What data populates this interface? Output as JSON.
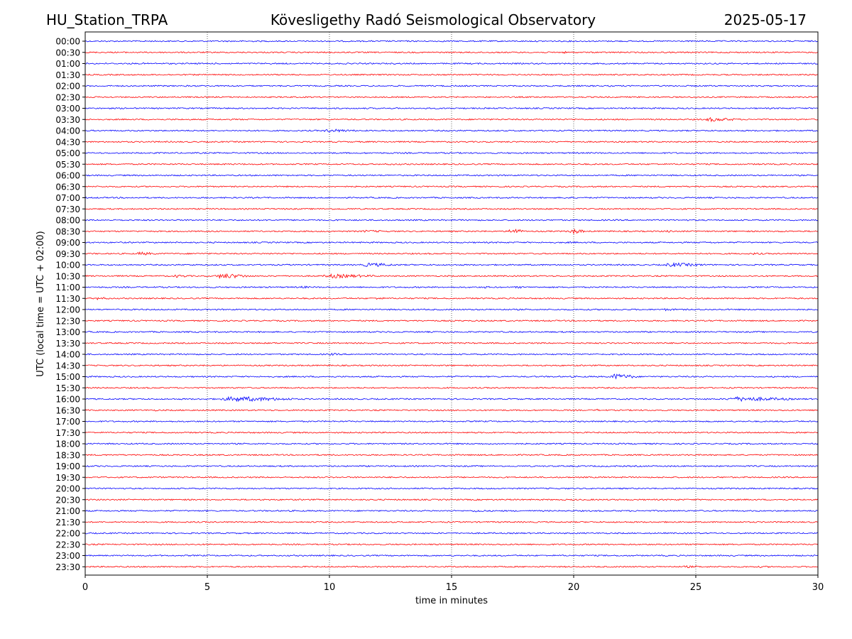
{
  "header": {
    "station": "HU_Station_TRPA",
    "observatory": "Kövesligethy Radó Seismological Observatory",
    "date": "2025-05-17"
  },
  "chart_data": {
    "type": "line",
    "title": "Kövesligethy Radó Seismological Observatory",
    "xlabel": "time in minutes",
    "ylabel": "UTC (local time = UTC + 02:00)",
    "xlim": [
      0,
      30
    ],
    "x_ticks": [
      "0",
      "5",
      "10",
      "15",
      "20",
      "25",
      "30"
    ],
    "grid": "vertical dotted lines at 5-minute intervals",
    "trace_colors": [
      "#0000ff",
      "#ff0000"
    ],
    "rows": [
      "00:00",
      "00:30",
      "01:00",
      "01:30",
      "02:00",
      "02:30",
      "03:00",
      "03:30",
      "04:00",
      "04:30",
      "05:00",
      "05:30",
      "06:00",
      "06:30",
      "07:00",
      "07:30",
      "08:00",
      "08:30",
      "09:00",
      "09:30",
      "10:00",
      "10:30",
      "11:00",
      "11:30",
      "12:00",
      "12:30",
      "13:00",
      "13:30",
      "14:00",
      "14:30",
      "15:00",
      "15:30",
      "16:00",
      "16:30",
      "17:00",
      "17:30",
      "18:00",
      "18:30",
      "19:00",
      "19:30",
      "20:00",
      "20:30",
      "21:00",
      "21:30",
      "22:00",
      "22:30",
      "23:00",
      "23:30"
    ],
    "events": [
      {
        "row": "00:30",
        "start": 15.5,
        "end": 16.5,
        "amp": 1.2
      },
      {
        "row": "00:30",
        "start": 19.4,
        "end": 19.8,
        "amp": 2.5
      },
      {
        "row": "03:30",
        "start": 25.2,
        "end": 26.8,
        "amp": 3.5
      },
      {
        "row": "04:00",
        "start": 9.6,
        "end": 11.2,
        "amp": 3.0
      },
      {
        "row": "05:30",
        "start": 12.0,
        "end": 13.8,
        "amp": 1.5
      },
      {
        "row": "07:00",
        "start": 19.5,
        "end": 20.2,
        "amp": 2.0
      },
      {
        "row": "08:00",
        "start": 10.0,
        "end": 11.2,
        "amp": 1.2
      },
      {
        "row": "08:30",
        "start": 11.0,
        "end": 13.0,
        "amp": 2.0
      },
      {
        "row": "08:30",
        "start": 17.3,
        "end": 17.9,
        "amp": 6.0
      },
      {
        "row": "08:30",
        "start": 19.8,
        "end": 20.4,
        "amp": 5.0
      },
      {
        "row": "08:30",
        "start": 23.8,
        "end": 24.0,
        "amp": 4.0
      },
      {
        "row": "08:30",
        "start": 28.0,
        "end": 29.5,
        "amp": 1.5
      },
      {
        "row": "09:00",
        "start": 19.5,
        "end": 20.8,
        "amp": 1.5
      },
      {
        "row": "09:00",
        "start": 25.3,
        "end": 26.5,
        "amp": 1.5
      },
      {
        "row": "09:30",
        "start": 2.0,
        "end": 3.0,
        "amp": 3.0
      },
      {
        "row": "09:30",
        "start": 27.2,
        "end": 28.0,
        "amp": 2.0
      },
      {
        "row": "10:00",
        "start": 11.2,
        "end": 12.8,
        "amp": 3.5
      },
      {
        "row": "10:00",
        "start": 23.5,
        "end": 25.5,
        "amp": 3.5
      },
      {
        "row": "10:30",
        "start": 3.5,
        "end": 4.5,
        "amp": 2.5
      },
      {
        "row": "10:30",
        "start": 5.2,
        "end": 6.8,
        "amp": 4.5
      },
      {
        "row": "10:30",
        "start": 9.5,
        "end": 12.0,
        "amp": 3.5
      },
      {
        "row": "11:00",
        "start": 8.8,
        "end": 9.2,
        "amp": 2.5
      },
      {
        "row": "11:00",
        "start": 16.2,
        "end": 16.8,
        "amp": 2.0
      },
      {
        "row": "11:00",
        "start": 17.5,
        "end": 18.2,
        "amp": 2.0
      },
      {
        "row": "11:30",
        "start": 0.2,
        "end": 1.2,
        "amp": 2.5
      },
      {
        "row": "11:30",
        "start": 11.9,
        "end": 12.2,
        "amp": 4.0
      },
      {
        "row": "12:00",
        "start": 23.5,
        "end": 24.5,
        "amp": 2.0
      },
      {
        "row": "13:00",
        "start": 12.2,
        "end": 13.5,
        "amp": 1.5
      },
      {
        "row": "14:00",
        "start": 9.8,
        "end": 10.8,
        "amp": 2.0
      },
      {
        "row": "15:00",
        "start": 21.4,
        "end": 22.6,
        "amp": 5.0
      },
      {
        "row": "16:00",
        "start": 5.3,
        "end": 8.5,
        "amp": 4.5
      },
      {
        "row": "16:00",
        "start": 26.0,
        "end": 29.0,
        "amp": 4.0
      },
      {
        "row": "16:30",
        "start": 2.5,
        "end": 3.5,
        "amp": 1.5
      },
      {
        "row": "16:30",
        "start": 7.5,
        "end": 8.5,
        "amp": 1.5
      },
      {
        "row": "16:30",
        "start": 10.2,
        "end": 10.8,
        "amp": 1.5
      },
      {
        "row": "16:30",
        "start": 20.9,
        "end": 21.1,
        "amp": 2.0
      },
      {
        "row": "21:00",
        "start": 15.8,
        "end": 16.6,
        "amp": 2.5
      },
      {
        "row": "21:30",
        "start": 2.2,
        "end": 2.6,
        "amp": 1.5
      },
      {
        "row": "23:30",
        "start": 24.3,
        "end": 25.5,
        "amp": 2.0
      },
      {
        "row": "23:30",
        "start": 27.3,
        "end": 28.8,
        "amp": 1.5
      }
    ]
  }
}
